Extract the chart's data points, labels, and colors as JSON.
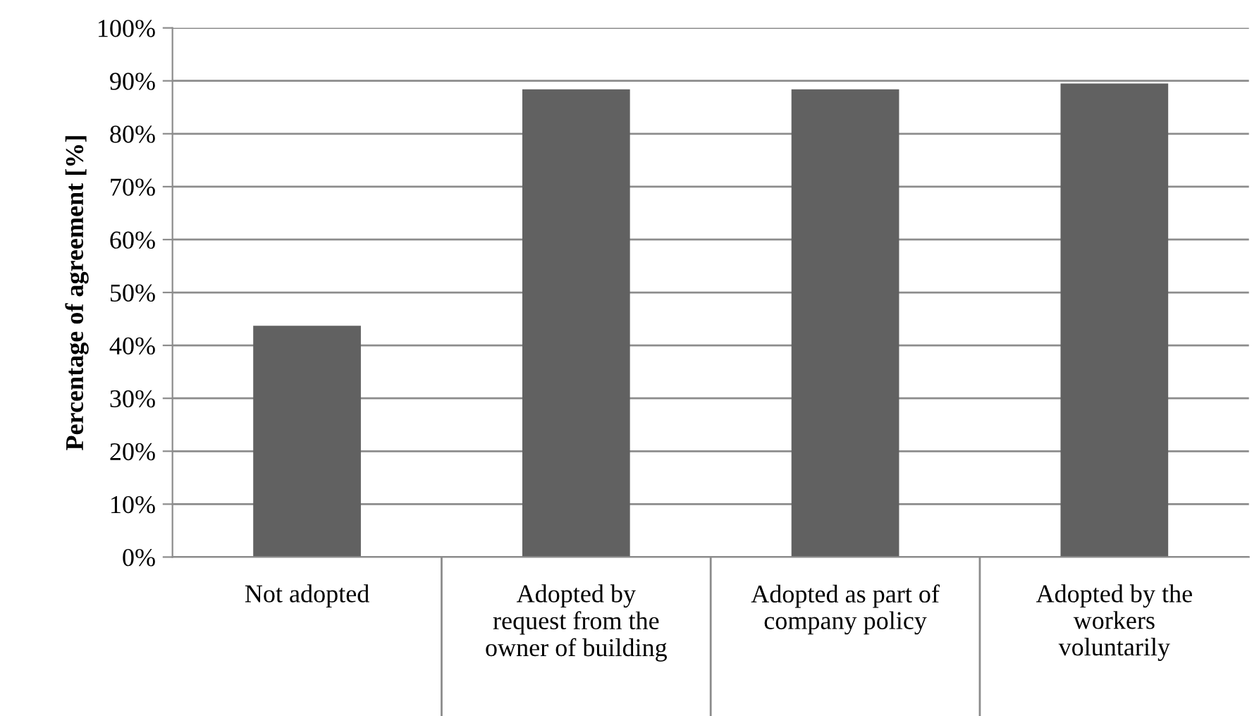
{
  "chart_data": {
    "type": "bar",
    "ylabel": "Percentage of agreement [%]",
    "categories": [
      "Not adopted",
      "Adopted by\nrequest from the\nowner of building",
      "Adopted as part of\ncompany policy",
      "Adopted by the\nworkers\nvoluntarily"
    ],
    "values": [
      43.7,
      88.4,
      88.4,
      89.5
    ],
    "color": "#616161",
    "ylim": [
      0,
      100
    ],
    "yticks": [
      {
        "value": 0,
        "label": "0%"
      },
      {
        "value": 10,
        "label": "10%"
      },
      {
        "value": 20,
        "label": "20%"
      },
      {
        "value": 30,
        "label": "30%"
      },
      {
        "value": 40,
        "label": "40%"
      },
      {
        "value": 50,
        "label": "50%"
      },
      {
        "value": 60,
        "label": "60%"
      },
      {
        "value": 70,
        "label": "70%"
      },
      {
        "value": 80,
        "label": "80%"
      },
      {
        "value": 90,
        "label": "90%"
      },
      {
        "value": 100,
        "label": "100%"
      }
    ],
    "grid": "y"
  }
}
